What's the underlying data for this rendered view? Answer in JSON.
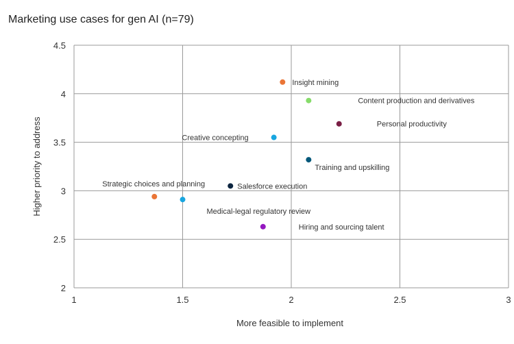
{
  "chart_data": {
    "type": "scatter",
    "title": "Marketing use cases for gen AI (n=79)",
    "xlabel": "More feasible to implement",
    "ylabel": "Higher priority to address",
    "xlim": [
      1,
      3
    ],
    "ylim": [
      2,
      4.5
    ],
    "xticks": [
      "1",
      "1.5",
      "2",
      "2.5",
      "3"
    ],
    "yticks": [
      "2",
      "2.5",
      "3",
      "3.5",
      "4",
      "4.5"
    ],
    "grid": true,
    "points": [
      {
        "label": "Insight mining",
        "x": 1.96,
        "y": 4.12,
        "color": "#ea7536"
      },
      {
        "label": "Content production and derivatives",
        "x": 2.08,
        "y": 3.93,
        "color": "#86dc6a"
      },
      {
        "label": "Personal productivity",
        "x": 2.22,
        "y": 3.69,
        "color": "#7a1f45"
      },
      {
        "label": "Creative concepting",
        "x": 1.92,
        "y": 3.55,
        "color": "#18a6e0"
      },
      {
        "label": "Training and upskilling",
        "x": 2.08,
        "y": 3.32,
        "color": "#04587a"
      },
      {
        "label": "Salesforce execution",
        "x": 1.72,
        "y": 3.05,
        "color": "#0c2540"
      },
      {
        "label": "Strategic choices and planning",
        "x": 1.37,
        "y": 2.94,
        "color": "#ea7536"
      },
      {
        "label": "Medical-legal regulatory review",
        "x": 1.5,
        "y": 2.91,
        "color": "#18a6e0"
      },
      {
        "label": "Hiring and sourcing talent",
        "x": 1.87,
        "y": 2.63,
        "color": "#9418c0"
      }
    ]
  }
}
